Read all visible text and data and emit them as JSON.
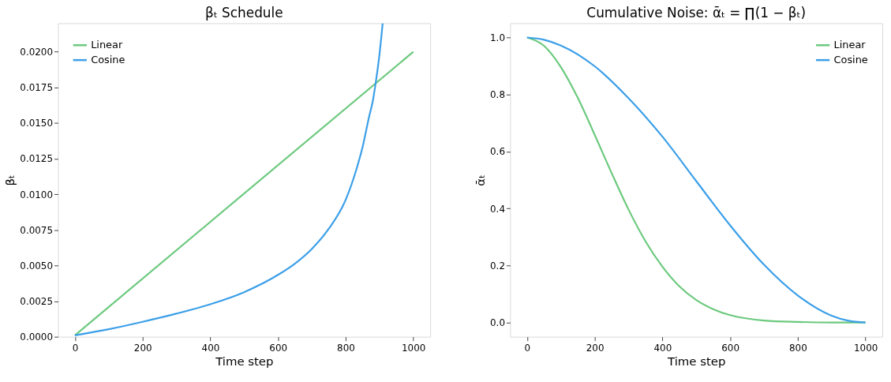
{
  "chart_data": [
    {
      "type": "line",
      "title": "βₜ Schedule",
      "xlabel": "Time step",
      "ylabel": "βₜ",
      "xlim": [
        -50,
        1050
      ],
      "xticks": [
        0,
        200,
        400,
        600,
        800,
        1000
      ],
      "ylim": [
        0,
        0.022
      ],
      "yticks": [
        {
          "value": 0,
          "label": "0.0000"
        },
        {
          "value": 0.0025,
          "label": "0.0025"
        },
        {
          "value": 0.005,
          "label": "0.0050"
        },
        {
          "value": 0.0075,
          "label": "0.0075"
        },
        {
          "value": 0.01,
          "label": "0.0100"
        },
        {
          "value": 0.0125,
          "label": "0.0125"
        },
        {
          "value": 0.015,
          "label": "0.0150"
        },
        {
          "value": 0.0175,
          "label": "0.0175"
        },
        {
          "value": 0.02,
          "label": "0.0200"
        }
      ],
      "grid": false,
      "legend": "top left",
      "series": [
        {
          "name": "Linear",
          "color": "#6cc97e",
          "x": [
            0,
            1000
          ],
          "values": [
            0.0001,
            0.02
          ]
        },
        {
          "name": "Cosine",
          "color": "#3b9fe8",
          "x": [
            0,
            100,
            200,
            300,
            400,
            500,
            600,
            650,
            700,
            750,
            800,
            830,
            850,
            870,
            880,
            890,
            900,
            909.5
          ],
          "values": [
            0.0001,
            0.00053,
            0.00105,
            0.00162,
            0.00228,
            0.00313,
            0.00434,
            0.00513,
            0.00616,
            0.00757,
            0.0096,
            0.0116,
            0.0133,
            0.0155,
            0.0165,
            0.018,
            0.0198,
            0.022
          ]
        }
      ]
    },
    {
      "type": "line",
      "title": "Cumulative Noise: ᾱₜ = ∏(1 − βₜ)",
      "xlabel": "Time step",
      "ylabel": "ᾱₜ",
      "xlim": [
        -50,
        1050
      ],
      "xticks": [
        0,
        200,
        400,
        600,
        800,
        1000
      ],
      "ylim": [
        -0.05,
        1.05
      ],
      "yticks": [
        {
          "value": 0,
          "label": "0.0"
        },
        {
          "value": 0.2,
          "label": "0.2"
        },
        {
          "value": 0.4,
          "label": "0.4"
        },
        {
          "value": 0.6,
          "label": "0.6"
        },
        {
          "value": 0.8,
          "label": "0.8"
        },
        {
          "value": 1,
          "label": "1.0"
        }
      ],
      "grid": false,
      "legend": "top right",
      "series": [
        {
          "name": "Linear",
          "color": "#6cc97e",
          "x": [
            0,
            50,
            100,
            150,
            200,
            250,
            300,
            350,
            400,
            450,
            500,
            550,
            600,
            650,
            700,
            800,
            900,
            1000
          ],
          "values": [
            1.0,
            0.971,
            0.896,
            0.788,
            0.658,
            0.524,
            0.396,
            0.285,
            0.196,
            0.127,
            0.079,
            0.047,
            0.026,
            0.014,
            0.007,
            0.002,
            0.0,
            0.0
          ]
        },
        {
          "name": "Cosine",
          "color": "#3b9fe8",
          "x": [
            0,
            50,
            100,
            200,
            300,
            400,
            500,
            600,
            700,
            800,
            900,
            950,
            1000
          ],
          "values": [
            1.0,
            0.992,
            0.972,
            0.899,
            0.787,
            0.652,
            0.496,
            0.341,
            0.203,
            0.095,
            0.024,
            0.006,
            0.0
          ]
        }
      ]
    }
  ]
}
